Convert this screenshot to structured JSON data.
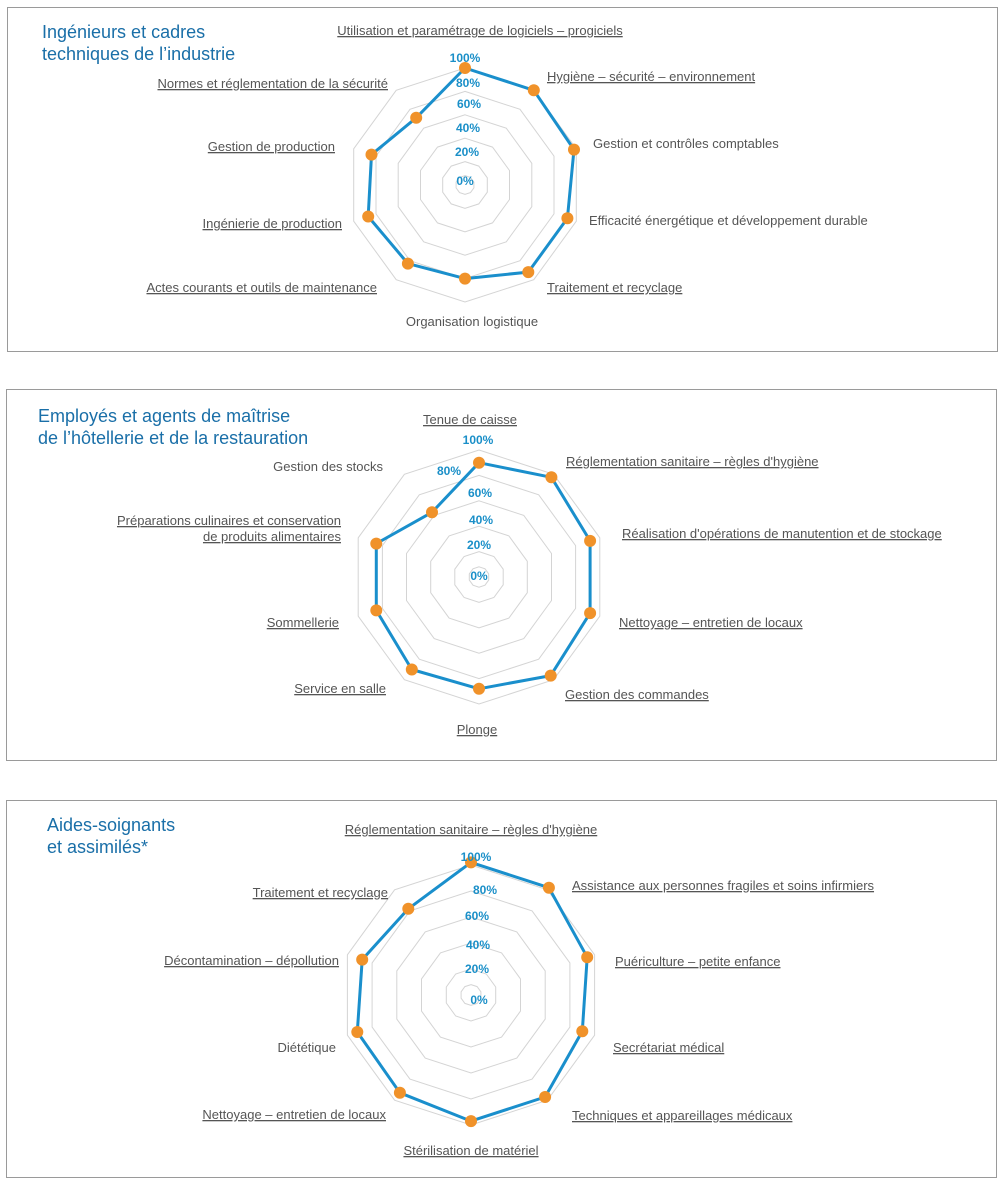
{
  "theme": {
    "grid_color": "#d4d4d4",
    "line_color": "#1a8fcc",
    "marker_color": "#f0922a",
    "title_color": "#1a6fa8"
  },
  "panels": [
    {
      "title_line1": "Ingénieurs et cadres",
      "title_line2": "techniques de l’industrie"
    },
    {
      "title_line1": "Employés et agents de maîtrise",
      "title_line2": "de l’hôtellerie et de la restauration"
    },
    {
      "title_line1": "Aides-soignants",
      "title_line2": "et assimilés*"
    }
  ],
  "chart_data": [
    {
      "type": "radar",
      "title": "Ingénieurs et cadres techniques de l’industrie",
      "radial_ticks": [
        "0%",
        "20%",
        "40%",
        "60%",
        "80%",
        "100%"
      ],
      "rlim": [
        0,
        100
      ],
      "categories": [
        "Utilisation et paramétrage de logiciels – progiciels",
        "Hygiène – sécurité – environnement",
        "Gestion et contrôles comptables",
        "Efficacité énergétique et développement durable",
        "Traitement et recyclage",
        "Organisation logistique",
        "Actes courants et outils de maintenance",
        "Ingénierie de production",
        "Gestion de production",
        "Normes et réglementation de la sécurité"
      ],
      "underlined": [
        true,
        true,
        false,
        false,
        true,
        false,
        true,
        true,
        true,
        true
      ],
      "values": [
        100,
        100,
        98,
        92,
        92,
        80,
        83,
        87,
        84,
        71
      ]
    },
    {
      "type": "radar",
      "title": "Employés et agents de maîtrise de l’hôtellerie et de la restauration",
      "radial_ticks": [
        "0%",
        "20%",
        "40%",
        "60%",
        "80%",
        "100%"
      ],
      "rlim": [
        0,
        100
      ],
      "categories": [
        "Tenue de caisse",
        "Réglementation sanitaire – règles d'hygiène",
        "Réalisation d'opérations de manutention et de stockage",
        "Nettoyage – entretien de locaux",
        "Gestion des commandes",
        "Plonge",
        "Service en salle",
        "Sommellerie",
        "Préparations culinaires et conservation de produits alimentaires",
        "Gestion des stocks"
      ],
      "underlined": [
        true,
        true,
        true,
        true,
        true,
        true,
        true,
        true,
        true,
        false
      ],
      "values": [
        90,
        97,
        92,
        92,
        96,
        88,
        90,
        85,
        85,
        63
      ]
    },
    {
      "type": "radar",
      "title": "Aides-soignants et assimilés*",
      "radial_ticks": [
        "0%",
        "20%",
        "40%",
        "60%",
        "80%",
        "100%"
      ],
      "rlim": [
        0,
        100
      ],
      "categories": [
        "Réglementation sanitaire – règles d'hygiène",
        "Assistance aux personnes fragiles et soins infirmiers",
        "Puériculture – petite enfance",
        "Secrétariat médical",
        "Techniques et appareillages médicaux",
        "Stérilisation de matériel",
        "Nettoyage – entretien de locaux",
        "Diététique",
        "Décontamination – dépollution",
        "Traitement et recyclage"
      ],
      "underlined": [
        true,
        true,
        true,
        true,
        true,
        true,
        true,
        false,
        true,
        true
      ],
      "values": [
        102,
        102,
        94,
        90,
        97,
        97,
        93,
        92,
        88,
        82
      ]
    }
  ]
}
